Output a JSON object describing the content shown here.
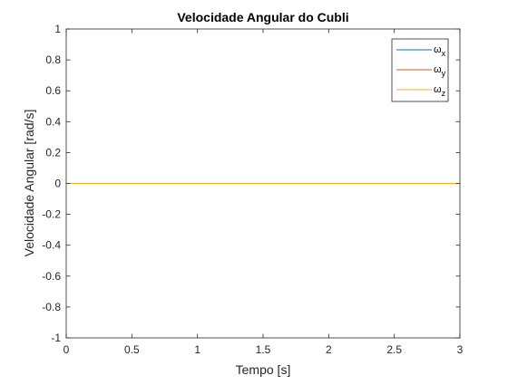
{
  "chart_data": {
    "type": "line",
    "title": "Velocidade Angular do Cubli",
    "xlabel": "Tempo [s]",
    "ylabel": "Velocidade Angular [rad/s]",
    "xlim": [
      0,
      3
    ],
    "ylim": [
      -1,
      1
    ],
    "xticks": [
      0,
      0.5,
      1,
      1.5,
      2,
      2.5,
      3
    ],
    "xtick_labels": [
      "0",
      "0.5",
      "1",
      "1.5",
      "2",
      "2.5",
      "3"
    ],
    "yticks": [
      -1,
      -0.8,
      -0.6,
      -0.4,
      -0.2,
      0,
      0.2,
      0.4,
      0.6,
      0.8,
      1
    ],
    "ytick_labels": [
      "-1",
      "-0.8",
      "-0.6",
      "-0.4",
      "-0.2",
      "0",
      "0.2",
      "0.4",
      "0.6",
      "0.8",
      "1"
    ],
    "grid": false,
    "legend_position": "top-right",
    "x": [
      0,
      3
    ],
    "series": [
      {
        "name": "ω",
        "subscript": "x",
        "color": "#0072BD",
        "values": [
          0,
          0
        ]
      },
      {
        "name": "ω",
        "subscript": "y",
        "color": "#D95319",
        "values": [
          0,
          0
        ]
      },
      {
        "name": "ω",
        "subscript": "z",
        "color": "#EDB120",
        "values": [
          0,
          0
        ]
      }
    ]
  }
}
